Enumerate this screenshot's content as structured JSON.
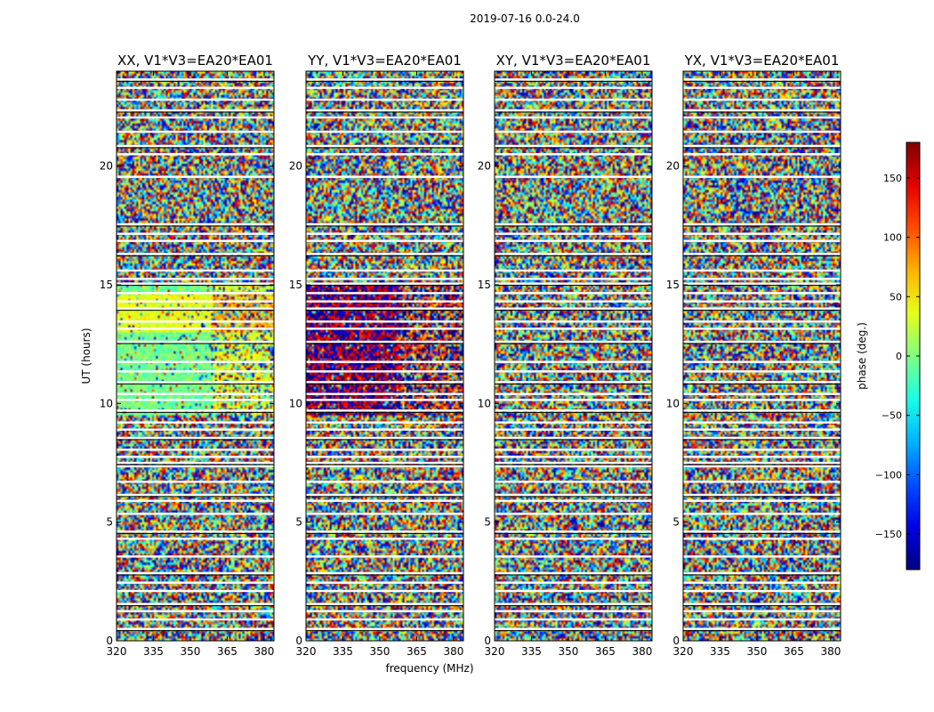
{
  "suptitle": "2019-07-16 0.0-24.0",
  "chart_data": {
    "type": "heatmap",
    "suptitle": "2019-07-16 0.0-24.0",
    "xlabel": "frequency (MHz)",
    "ylabel": "UT (hours)",
    "xlim": [
      320,
      384
    ],
    "ylim": [
      0,
      24
    ],
    "xticks": [
      320,
      335,
      350,
      365,
      380
    ],
    "yticks": [
      0,
      5,
      10,
      15,
      20
    ],
    "colorbar": {
      "label": "phase (deg.)",
      "range": [
        -180,
        180
      ],
      "ticks": [
        -150,
        -100,
        -50,
        0,
        50,
        100,
        150
      ],
      "ticklabels": [
        "−150",
        "−100",
        "−50",
        "0",
        "50",
        "100",
        "150"
      ],
      "colormap": "jet"
    },
    "panels": [
      {
        "title": "XX, V1*V3=EA20*EA01",
        "coherent_phase_band_ut": [
          9.5,
          15.0
        ],
        "approx_phase_deg": -5
      },
      {
        "title": "YY, V1*V3=EA20*EA01",
        "coherent_phase_band_ut": [
          9.5,
          15.0
        ],
        "approx_phase_deg": 170
      },
      {
        "title": "XY, V1*V3=EA20*EA01",
        "coherent_phase_band_ut": null,
        "approx_phase_deg": null
      },
      {
        "title": "YX, V1*V3=EA20*EA01",
        "coherent_phase_band_ut": null,
        "approx_phase_deg": null
      }
    ],
    "flagged_ut_hours": [
      0.5,
      0.9,
      1.25,
      1.55,
      2.1,
      2.45,
      2.85,
      3.55,
      4.3,
      4.6,
      5.35,
      5.9,
      6.15,
      6.7,
      7.35,
      7.5,
      7.75,
      8.05,
      8.55,
      8.9,
      9.2,
      9.7,
      10.15,
      10.4,
      10.9,
      11.35,
      11.75,
      12.6,
      13.15,
      13.45,
      14.0,
      14.3,
      14.65,
      15.05,
      15.25,
      15.6,
      16.3,
      16.85,
      17.15,
      17.55,
      19.55,
      20.5,
      20.85,
      21.45,
      22.05,
      22.35,
      22.8,
      23.3,
      23.65
    ]
  }
}
